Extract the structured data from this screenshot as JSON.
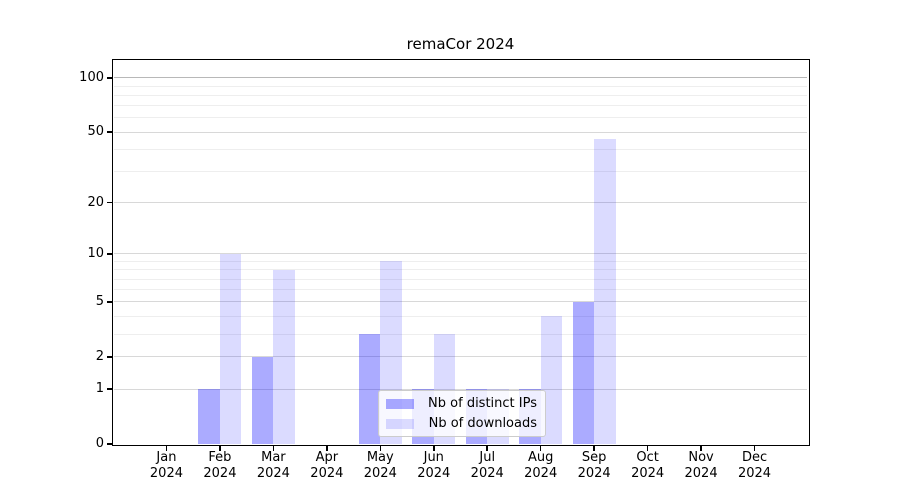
{
  "chart_data": {
    "type": "bar",
    "title": "remaCor 2024",
    "categories": [
      "Jan",
      "Feb",
      "Mar",
      "Apr",
      "May",
      "Jun",
      "Jul",
      "Aug",
      "Sep",
      "Oct",
      "Nov",
      "Dec"
    ],
    "year_label": "2024",
    "series": [
      {
        "name": "Nb of distinct IPs",
        "color": "rgba(0,0,255,0.33)",
        "values": [
          0,
          1,
          2,
          0,
          3,
          1,
          1,
          1,
          5,
          0,
          0,
          0
        ]
      },
      {
        "name": "Nb of downloads",
        "color": "rgba(0,0,255,0.14)",
        "values": [
          0,
          10,
          8,
          0,
          9,
          3,
          1,
          4,
          46,
          0,
          0,
          0
        ]
      }
    ],
    "yscale": "log1p",
    "ylim": [
      0,
      125.7
    ],
    "yticks": [
      0,
      1,
      2,
      5,
      10,
      20,
      50,
      100
    ],
    "minor_gridlines": [
      3,
      4,
      6,
      7,
      8,
      9,
      30,
      40,
      60,
      70,
      80,
      90
    ],
    "strong_gridline_at": 100,
    "grid": true,
    "legend_position": "lower center"
  }
}
